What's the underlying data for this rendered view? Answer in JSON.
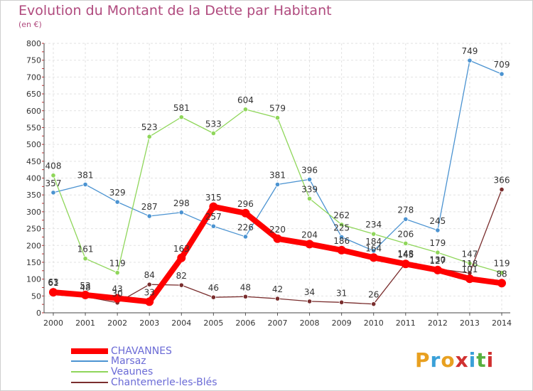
{
  "header": {
    "title": "Evolution du Montant de la Dette par Habitant",
    "unit": "(en €)"
  },
  "logo": {
    "text": "Proxiti",
    "colors": [
      "#e8a020",
      "#3aa0d8",
      "#e8a020",
      "#d03030",
      "#3aa0d8",
      "#58b040",
      "#d03030"
    ]
  },
  "chart_data": {
    "type": "line",
    "title": "Evolution du Montant de la Dette par Habitant",
    "ylabel": "(en €)",
    "xlabel": "",
    "ylim": [
      0,
      800
    ],
    "yticks": [
      "0",
      "50",
      "100",
      "150",
      "200",
      "250",
      "300",
      "350",
      "400",
      "450",
      "500",
      "550",
      "600",
      "650",
      "700",
      "750",
      "800"
    ],
    "categories": [
      "2000",
      "2001",
      "2002",
      "2003",
      "2004",
      "2005",
      "2006",
      "2007",
      "2008",
      "2009",
      "2010",
      "2011",
      "2012",
      "2013",
      "2014"
    ],
    "grid": true,
    "legend": "bottom-left",
    "series": [
      {
        "name": "CHAVANNES",
        "color": "#ff0000",
        "values": [
          61,
          53,
          43,
          33,
          163,
          315,
          296,
          220,
          204,
          186,
          164,
          145,
          127,
          101,
          88
        ],
        "labels": [
          "61",
          "53",
          "43",
          "33",
          "163",
          "315",
          "296",
          "220",
          "204",
          "186",
          "164",
          "145",
          "127",
          "101",
          "88"
        ]
      },
      {
        "name": "Marsaz",
        "color": "#4b93d1",
        "values": [
          357,
          381,
          329,
          287,
          298,
          257,
          226,
          381,
          396,
          225,
          184,
          278,
          245,
          749,
          709
        ],
        "labels": [
          "357",
          "381",
          "329",
          "287",
          "298",
          "257",
          "226",
          "381",
          "396",
          "225",
          "184",
          "278",
          "245",
          "749",
          "709"
        ]
      },
      {
        "name": "Veaunes",
        "color": "#8fd65a",
        "values": [
          408,
          161,
          119,
          523,
          581,
          533,
          604,
          579,
          339,
          262,
          234,
          206,
          179,
          147,
          119
        ],
        "labels": [
          "408",
          "161",
          "119",
          "523",
          "581",
          "533",
          "604",
          "579",
          "339",
          "262",
          "234",
          "206",
          "179",
          "147",
          "119"
        ]
      },
      {
        "name": "Chantemerle-les-Blés",
        "color": "#7a2e2e",
        "values": [
          63,
          48,
          30,
          84,
          82,
          46,
          48,
          42,
          34,
          31,
          26,
          148,
          130,
          118,
          366
        ],
        "labels": [
          "63",
          "48",
          "30",
          "84",
          "82",
          "46",
          "48",
          "42",
          "34",
          "31",
          "26",
          "148",
          "130",
          "118",
          "366"
        ]
      }
    ]
  }
}
